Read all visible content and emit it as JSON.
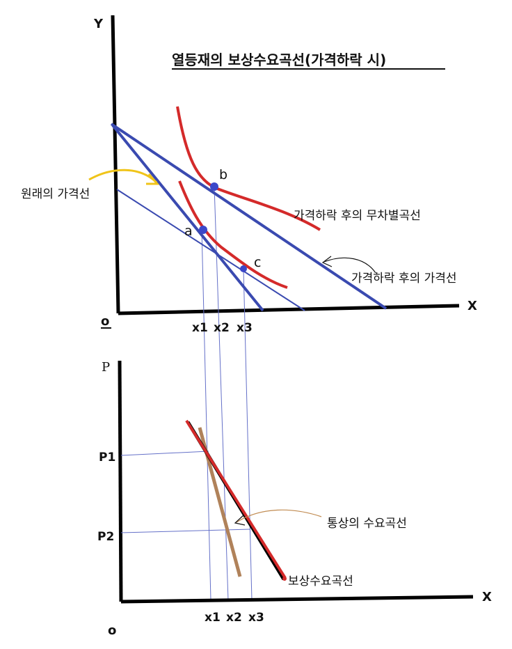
{
  "title": "열등재의 보상수요곡선(가격하락 시)",
  "top_graph": {
    "y_axis_label": "Y",
    "x_axis_label": "X",
    "origin_label": "o",
    "original_budget_line_label": "원래의 가격선",
    "new_budget_line_label": "가격하락 후의 가격선",
    "new_indifference_curve_label": "가격하락 후의 무차별곡선",
    "point_a": "a",
    "point_b": "b",
    "point_c": "c",
    "x_ticks": [
      "x1",
      "x2",
      "x3"
    ]
  },
  "bottom_graph": {
    "p_axis_label": "P",
    "x_axis_label": "X",
    "origin_label": "o",
    "price_ticks": [
      "P1",
      "P2"
    ],
    "x_ticks": [
      "x1",
      "x2",
      "x3"
    ],
    "ordinary_demand_label": "통상의 수요곡선",
    "compensated_demand_label": "보상수요곡선"
  },
  "colors": {
    "axis": "#000000",
    "budget_line": "#3a4ab0",
    "guide_line": "#6470c8",
    "indifference_curve": "#d42a2a",
    "point": "#3b47c9",
    "arrow_yellow": "#f0c419",
    "compensated_demand": "#d42a2a",
    "ordinary_demand": "#b0825a",
    "annotation_arrow": "#c08a50"
  }
}
